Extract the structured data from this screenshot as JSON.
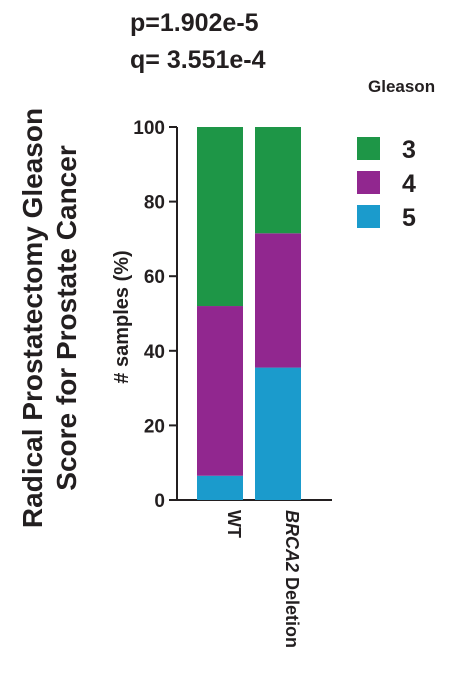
{
  "chart_data": {
    "type": "bar",
    "stacked": true,
    "title": "Radical Prostatectomy Gleason Score for Prostate Cancer",
    "title_lines": [
      "Radical Prostatectomy Gleason",
      "Score for Prostate Cancer"
    ],
    "stats": {
      "p_text": "p=1.902e-5",
      "q_text": "q= 3.551e-4"
    },
    "ylabel": "# samples (%)",
    "ylim": [
      0,
      100
    ],
    "yticks": [
      0,
      20,
      40,
      60,
      80,
      100
    ],
    "categories": [
      {
        "italic": "",
        "text": "WT"
      },
      {
        "italic": "BRCA2",
        "text": " Deletion"
      }
    ],
    "series": [
      {
        "name": "5",
        "color": "#1b9bcc",
        "values": [
          6.5,
          35.5
        ]
      },
      {
        "name": "4",
        "color": "#91278f",
        "values": [
          45.5,
          36.0
        ]
      },
      {
        "name": "3",
        "color": "#1e9647",
        "values": [
          48.0,
          28.5
        ]
      }
    ],
    "legend": {
      "title": "Gleason",
      "position": "right",
      "order": [
        "3",
        "4",
        "5"
      ]
    },
    "grid": false
  }
}
